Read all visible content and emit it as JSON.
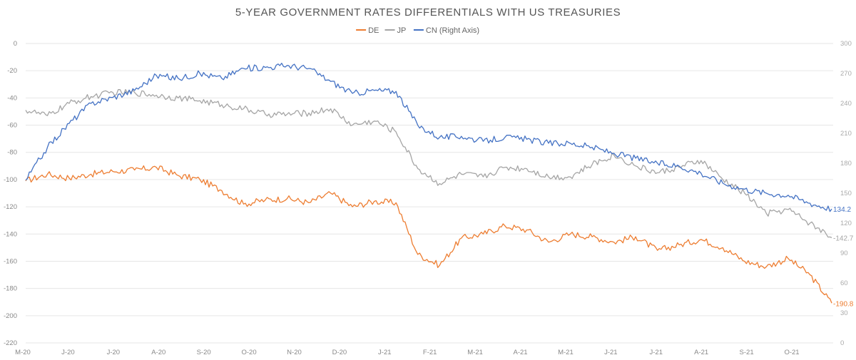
{
  "chart_data": {
    "type": "line",
    "title": "5-YEAR GOVERNMENT RATES DIFFERENTIALS WITH US TREASURIES",
    "legend_position": "top-center",
    "grid": true,
    "x_ticks": [
      "M-20",
      "J-20",
      "J-20",
      "A-20",
      "S-20",
      "O-20",
      "N-20",
      "D-20",
      "J-21",
      "F-21",
      "M-21",
      "A-21",
      "M-21",
      "J-21",
      "J-21",
      "A-21",
      "S-21",
      "O-21"
    ],
    "left_axis": {
      "ylim": [
        -220,
        0
      ],
      "ticks": [
        0,
        -20,
        -40,
        -60,
        -80,
        -100,
        -120,
        -140,
        -160,
        -180,
        -200,
        -220
      ]
    },
    "right_axis": {
      "ylim": [
        0,
        300
      ],
      "ticks": [
        300,
        270,
        240,
        210,
        180,
        150,
        120,
        90,
        60,
        30,
        0
      ]
    },
    "x": [
      0,
      0.5,
      1,
      1.5,
      2,
      2.5,
      3,
      3.5,
      4,
      4.5,
      5,
      5.5,
      6,
      6.5,
      7,
      7.5,
      8,
      8.5,
      9,
      9.5,
      10,
      10.5,
      11,
      11.5,
      12,
      12.5,
      13,
      13.5,
      14,
      14.5,
      15,
      15.5,
      16,
      16.5,
      17,
      17.5,
      18,
      18.5
    ],
    "series": [
      {
        "name": "DE",
        "color": "#ED7D31",
        "axis": "left",
        "end_label": "-190.8",
        "values": [
          -101,
          -96,
          -99,
          -96,
          -94,
          -93,
          -91,
          -97,
          -100,
          -108,
          -118,
          -115,
          -114,
          -117,
          -110,
          -120,
          -116,
          -117,
          -155,
          -163,
          -143,
          -140,
          -134,
          -137,
          -146,
          -140,
          -142,
          -146,
          -142,
          -152,
          -148,
          -144,
          -150,
          -160,
          -164,
          -158,
          -170,
          -190.8
        ]
      },
      {
        "name": "JP",
        "color": "#A5A5A5",
        "axis": "left",
        "end_label": "-142.7",
        "values": [
          -49,
          -53,
          -44,
          -39,
          -36,
          -36,
          -38,
          -40,
          -42,
          -45,
          -48,
          -52,
          -52,
          -51,
          -48,
          -60,
          -57,
          -65,
          -92,
          -103,
          -96,
          -98,
          -91,
          -92,
          -98,
          -98,
          -89,
          -82,
          -90,
          -95,
          -91,
          -86,
          -100,
          -110,
          -125,
          -122,
          -132,
          -142.7
        ]
      },
      {
        "name": "CN (Right Axis)",
        "color": "#4472C4",
        "axis": "right",
        "end_label": "134.2",
        "values": [
          163,
          196,
          220,
          240,
          246,
          253,
          268,
          265,
          270,
          265,
          275,
          276,
          278,
          275,
          262,
          250,
          253,
          252,
          218,
          206,
          207,
          202,
          206,
          204,
          200,
          200,
          196,
          190,
          185,
          180,
          177,
          170,
          160,
          154,
          150,
          148,
          140,
          134.2
        ]
      }
    ]
  }
}
